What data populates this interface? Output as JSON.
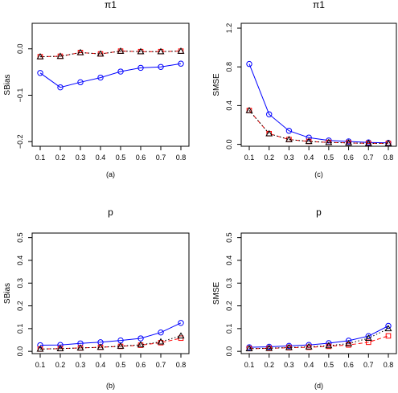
{
  "chart_data": [
    {
      "type": "line",
      "panel_label": "(a)",
      "title": "π1",
      "ylabel": "SBias",
      "xlabel": "",
      "x": [
        0.1,
        0.2,
        0.3,
        0.4,
        0.5,
        0.6,
        0.7,
        0.8
      ],
      "x_ticks": [
        "0.1",
        "0.2",
        "0.3",
        "0.4",
        "0.5",
        "0.6",
        "0.7",
        "0.8"
      ],
      "ylim": [
        -0.21,
        0.055
      ],
      "y_ticks": [
        -0.2,
        -0.1,
        0.0
      ],
      "y_tick_labels": [
        "−0.2",
        "−0.1",
        "0.0"
      ],
      "series": [
        {
          "values": [
            -0.052,
            -0.083,
            -0.072,
            -0.062,
            -0.049,
            -0.041,
            -0.039,
            -0.032
          ],
          "color": "#0000ff",
          "marker": "circle",
          "dash": "solid"
        },
        {
          "values": [
            -0.017,
            -0.016,
            -0.008,
            -0.011,
            -0.005,
            -0.006,
            -0.006,
            -0.005
          ],
          "color": "#ff0000",
          "marker": "square",
          "dash": "dashed"
        },
        {
          "values": [
            -0.017,
            -0.016,
            -0.008,
            -0.011,
            -0.005,
            -0.006,
            -0.006,
            -0.005
          ],
          "color": "#000000",
          "marker": "triangle",
          "dash": "dotted"
        }
      ]
    },
    {
      "type": "line",
      "panel_label": "(c)",
      "title": "π1",
      "ylabel": "SMSE",
      "xlabel": "",
      "x": [
        0.1,
        0.2,
        0.3,
        0.4,
        0.5,
        0.6,
        0.7,
        0.8
      ],
      "x_ticks": [
        "0.1",
        "0.2",
        "0.3",
        "0.4",
        "0.5",
        "0.6",
        "0.7",
        "0.8"
      ],
      "ylim": [
        -0.02,
        1.25
      ],
      "y_ticks": [
        0.0,
        0.4,
        0.8,
        1.2
      ],
      "y_tick_labels": [
        "0.0",
        "0.4",
        "0.8",
        "1.2"
      ],
      "series": [
        {
          "values": [
            0.83,
            0.31,
            0.14,
            0.07,
            0.04,
            0.03,
            0.02,
            0.015
          ],
          "color": "#0000ff",
          "marker": "circle",
          "dash": "solid"
        },
        {
          "values": [
            0.35,
            0.11,
            0.05,
            0.03,
            0.02,
            0.015,
            0.01,
            0.01
          ],
          "color": "#ff0000",
          "marker": "square",
          "dash": "dashed"
        },
        {
          "values": [
            0.35,
            0.11,
            0.05,
            0.03,
            0.02,
            0.015,
            0.01,
            0.01
          ],
          "color": "#000000",
          "marker": "triangle",
          "dash": "dotted"
        }
      ]
    },
    {
      "type": "line",
      "panel_label": "(b)",
      "title": "p",
      "ylabel": "SBias",
      "xlabel": "",
      "x": [
        0.1,
        0.2,
        0.3,
        0.4,
        0.5,
        0.6,
        0.7,
        0.8
      ],
      "x_ticks": [
        "0.1",
        "0.2",
        "0.3",
        "0.4",
        "0.5",
        "0.6",
        "0.7",
        "0.8"
      ],
      "ylim": [
        -0.01,
        0.52
      ],
      "y_ticks": [
        0.0,
        0.1,
        0.2,
        0.3,
        0.4,
        0.5
      ],
      "y_tick_labels": [
        "0.0",
        "0.1",
        "0.2",
        "0.3",
        "0.4",
        "0.5"
      ],
      "series": [
        {
          "values": [
            0.027,
            0.028,
            0.035,
            0.04,
            0.048,
            0.057,
            0.083,
            0.125
          ],
          "color": "#0000ff",
          "marker": "circle",
          "dash": "solid"
        },
        {
          "values": [
            0.01,
            0.012,
            0.015,
            0.018,
            0.022,
            0.027,
            0.038,
            0.058
          ],
          "color": "#ff0000",
          "marker": "square",
          "dash": "dashed"
        },
        {
          "values": [
            0.01,
            0.012,
            0.015,
            0.018,
            0.023,
            0.029,
            0.042,
            0.068
          ],
          "color": "#000000",
          "marker": "triangle",
          "dash": "dotted"
        }
      ]
    },
    {
      "type": "line",
      "panel_label": "(d)",
      "title": "p",
      "ylabel": "SMSE",
      "xlabel": "",
      "x": [
        0.1,
        0.2,
        0.3,
        0.4,
        0.5,
        0.6,
        0.7,
        0.8
      ],
      "x_ticks": [
        "0.1",
        "0.2",
        "0.3",
        "0.4",
        "0.5",
        "0.6",
        "0.7",
        "0.8"
      ],
      "ylim": [
        -0.01,
        0.52
      ],
      "y_ticks": [
        0.0,
        0.1,
        0.2,
        0.3,
        0.4,
        0.5
      ],
      "y_tick_labels": [
        "0.0",
        "0.1",
        "0.2",
        "0.3",
        "0.4",
        "0.5"
      ],
      "series": [
        {
          "values": [
            0.018,
            0.02,
            0.024,
            0.028,
            0.036,
            0.047,
            0.067,
            0.112
          ],
          "color": "#0000ff",
          "marker": "circle",
          "dash": "solid"
        },
        {
          "values": [
            0.012,
            0.013,
            0.016,
            0.018,
            0.022,
            0.028,
            0.04,
            0.068
          ],
          "color": "#ff0000",
          "marker": "square",
          "dash": "dashed"
        },
        {
          "values": [
            0.012,
            0.014,
            0.017,
            0.02,
            0.025,
            0.034,
            0.058,
            0.1
          ],
          "color": "#000000",
          "marker": "triangle",
          "dash": "dotted"
        }
      ]
    }
  ]
}
